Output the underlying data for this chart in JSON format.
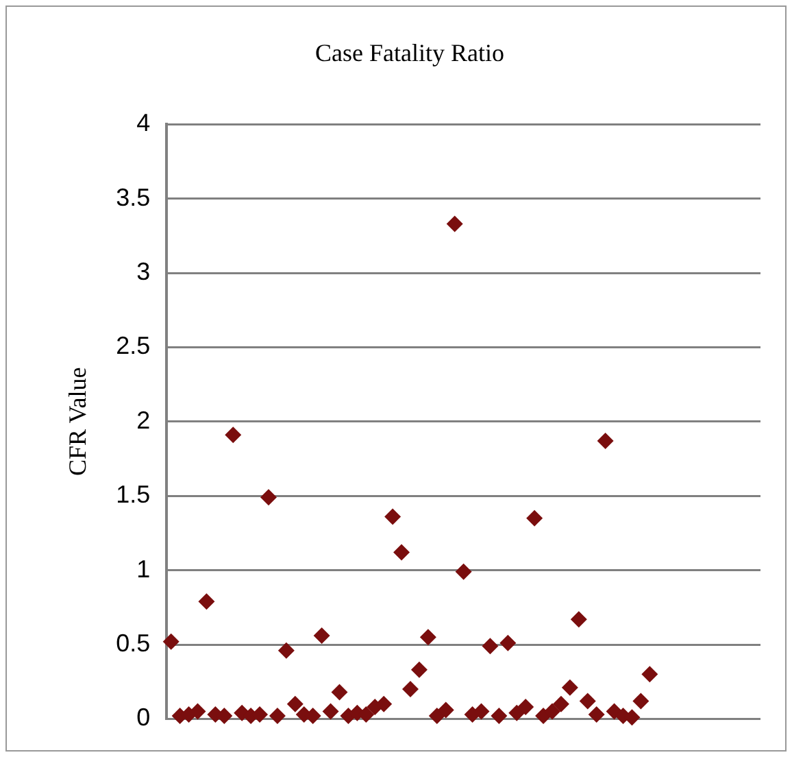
{
  "chart_data": {
    "type": "scatter",
    "title": "Case Fatality Ratio",
    "ylabel": "CFR Value",
    "categories": [
      null,
      null,
      null,
      null,
      null,
      null,
      null,
      null,
      null,
      null,
      null,
      null,
      null,
      null,
      null,
      null,
      null,
      null,
      null,
      null,
      null,
      null,
      null,
      null,
      null,
      null,
      null,
      null,
      null,
      null,
      null,
      null,
      null,
      null,
      null,
      null,
      null,
      null,
      null,
      null,
      null,
      null,
      null,
      null,
      null,
      null,
      null,
      null,
      null,
      null,
      null,
      null,
      null,
      null,
      null,
      null,
      null,
      null,
      null,
      null,
      null,
      null,
      null,
      null,
      null,
      null,
      null
    ],
    "series": [
      {
        "color": "#7a0e0e",
        "values": [
          0.52,
          0.02,
          0.03,
          0.05,
          0.79,
          0.03,
          0.02,
          1.91,
          0.04,
          0.02,
          0.03,
          1.49,
          0.02,
          0.46,
          0.1,
          0.03,
          0.02,
          0.56,
          0.05,
          0.18,
          0.02,
          0.04,
          0.03,
          0.08,
          0.1,
          1.36,
          1.12,
          0.2,
          0.33,
          0.55,
          0.02,
          0.06,
          3.33,
          0.99,
          0.03,
          0.05,
          0.49,
          0.02,
          0.51,
          0.04,
          0.08,
          1.35,
          0.02,
          0.05,
          0.1,
          0.21,
          0.67,
          0.12,
          0.03,
          1.87,
          0.05,
          0.02,
          0.01,
          0.12,
          0.3,
          null,
          null,
          null,
          null,
          null,
          null,
          null,
          null,
          null,
          null,
          null,
          null
        ]
      }
    ],
    "ylim": [
      0,
      4
    ],
    "yticks": [
      0,
      0.5,
      1,
      1.5,
      2,
      2.5,
      3,
      3.5,
      4
    ],
    "grid": "y",
    "legend": false,
    "marker": "diamond",
    "tick_labels": "y"
  }
}
